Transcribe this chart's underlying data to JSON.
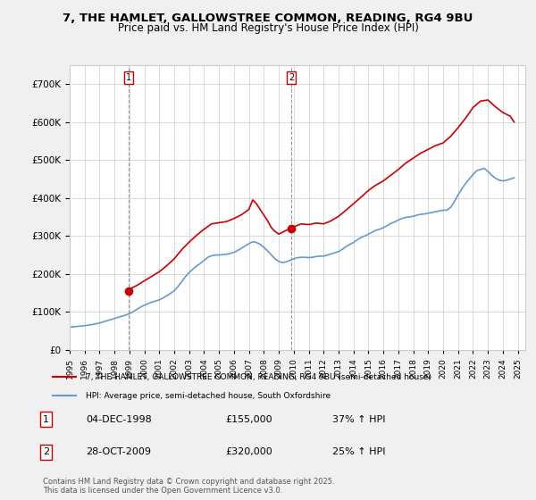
{
  "title_line1": "7, THE HAMLET, GALLOWSTREE COMMON, READING, RG4 9BU",
  "title_line2": "Price paid vs. HM Land Registry's House Price Index (HPI)",
  "ylim": [
    0,
    750000
  ],
  "yticks": [
    0,
    100000,
    200000,
    300000,
    400000,
    500000,
    600000,
    700000
  ],
  "ytick_labels": [
    "£0",
    "£100K",
    "£200K",
    "£300K",
    "£400K",
    "£500K",
    "£600K",
    "£700K"
  ],
  "x_start_year": 1995,
  "x_end_year": 2025,
  "marker1": {
    "label": "1",
    "date": "04-DEC-1998",
    "price": 155000,
    "hpi_change": "37% ↑ HPI",
    "x": 1998.92
  },
  "marker2": {
    "label": "2",
    "date": "28-OCT-2009",
    "price": 320000,
    "hpi_change": "25% ↑ HPI",
    "x": 2009.83
  },
  "legend_line1": "7, THE HAMLET, GALLOWSTREE COMMON, READING, RG4 9BU (semi-detached house)",
  "legend_line2": "HPI: Average price, semi-detached house, South Oxfordshire",
  "red_color": "#cc0000",
  "blue_color": "#6699cc",
  "copyright_text": "Contains HM Land Registry data © Crown copyright and database right 2025.\nThis data is licensed under the Open Government Licence v3.0.",
  "background_color": "#f0f0f0",
  "plot_background": "#ffffff",
  "hpi_data": {
    "years": [
      1995.0,
      1995.25,
      1995.5,
      1995.75,
      1996.0,
      1996.25,
      1996.5,
      1996.75,
      1997.0,
      1997.25,
      1997.5,
      1997.75,
      1998.0,
      1998.25,
      1998.5,
      1998.75,
      1999.0,
      1999.25,
      1999.5,
      1999.75,
      2000.0,
      2000.25,
      2000.5,
      2000.75,
      2001.0,
      2001.25,
      2001.5,
      2001.75,
      2002.0,
      2002.25,
      2002.5,
      2002.75,
      2003.0,
      2003.25,
      2003.5,
      2003.75,
      2004.0,
      2004.25,
      2004.5,
      2004.75,
      2005.0,
      2005.25,
      2005.5,
      2005.75,
      2006.0,
      2006.25,
      2006.5,
      2006.75,
      2007.0,
      2007.25,
      2007.5,
      2007.75,
      2008.0,
      2008.25,
      2008.5,
      2008.75,
      2009.0,
      2009.25,
      2009.5,
      2009.75,
      2010.0,
      2010.25,
      2010.5,
      2010.75,
      2011.0,
      2011.25,
      2011.5,
      2011.75,
      2012.0,
      2012.25,
      2012.5,
      2012.75,
      2013.0,
      2013.25,
      2013.5,
      2013.75,
      2014.0,
      2014.25,
      2014.5,
      2014.75,
      2015.0,
      2015.25,
      2015.5,
      2015.75,
      2016.0,
      2016.25,
      2016.5,
      2016.75,
      2017.0,
      2017.25,
      2017.5,
      2017.75,
      2018.0,
      2018.25,
      2018.5,
      2018.75,
      2019.0,
      2019.25,
      2019.5,
      2019.75,
      2020.0,
      2020.25,
      2020.5,
      2020.75,
      2021.0,
      2021.25,
      2021.5,
      2021.75,
      2022.0,
      2022.25,
      2022.5,
      2022.75,
      2023.0,
      2023.25,
      2023.5,
      2023.75,
      2024.0,
      2024.25,
      2024.5,
      2024.75
    ],
    "values": [
      60000,
      61000,
      62000,
      63000,
      64000,
      65500,
      67000,
      69000,
      71000,
      74000,
      77000,
      80000,
      83000,
      86000,
      89000,
      92000,
      96000,
      101000,
      107000,
      113000,
      118000,
      122000,
      126000,
      129000,
      132000,
      137000,
      143000,
      149000,
      156000,
      167000,
      180000,
      193000,
      204000,
      213000,
      221000,
      228000,
      236000,
      244000,
      248000,
      250000,
      250000,
      251000,
      252000,
      254000,
      257000,
      262000,
      268000,
      274000,
      280000,
      285000,
      283000,
      278000,
      270000,
      261000,
      250000,
      240000,
      233000,
      230000,
      232000,
      236000,
      240000,
      243000,
      244000,
      244000,
      243000,
      244000,
      246000,
      247000,
      247000,
      250000,
      253000,
      256000,
      259000,
      265000,
      272000,
      278000,
      283000,
      290000,
      296000,
      300000,
      305000,
      310000,
      315000,
      318000,
      322000,
      327000,
      333000,
      337000,
      342000,
      346000,
      349000,
      350000,
      352000,
      355000,
      357000,
      358000,
      360000,
      362000,
      364000,
      366000,
      368000,
      368000,
      375000,
      390000,
      408000,
      424000,
      438000,
      450000,
      462000,
      472000,
      475000,
      478000,
      470000,
      460000,
      452000,
      447000,
      445000,
      447000,
      450000,
      453000
    ]
  },
  "price_data": {
    "years": [
      1998.92,
      2009.83
    ],
    "values": [
      155000,
      320000
    ],
    "extended_years": [
      1998.92,
      1999.0,
      1999.5,
      2000.0,
      2000.5,
      2001.0,
      2001.5,
      2002.0,
      2002.5,
      2003.0,
      2003.5,
      2004.0,
      2004.5,
      2005.0,
      2005.5,
      2006.0,
      2006.5,
      2007.0,
      2007.25,
      2007.5,
      2007.75,
      2008.0,
      2008.25,
      2008.5,
      2008.75,
      2009.0,
      2009.25,
      2009.5,
      2009.75,
      2009.83,
      2010.0,
      2010.5,
      2011.0,
      2011.5,
      2012.0,
      2012.5,
      2013.0,
      2013.5,
      2014.0,
      2014.5,
      2015.0,
      2015.5,
      2016.0,
      2016.5,
      2017.0,
      2017.5,
      2018.0,
      2018.5,
      2019.0,
      2019.5,
      2020.0,
      2020.5,
      2021.0,
      2021.5,
      2022.0,
      2022.5,
      2023.0,
      2023.5,
      2024.0,
      2024.5,
      2024.75
    ],
    "extended_values": [
      155000,
      160000,
      170000,
      182000,
      194000,
      206000,
      222000,
      240000,
      264000,
      284000,
      302000,
      318000,
      332000,
      335000,
      338000,
      346000,
      356000,
      370000,
      395000,
      385000,
      370000,
      355000,
      340000,
      322000,
      312000,
      305000,
      310000,
      315000,
      318000,
      320000,
      324000,
      332000,
      330000,
      334000,
      332000,
      340000,
      352000,
      368000,
      385000,
      402000,
      420000,
      434000,
      445000,
      460000,
      475000,
      492000,
      505000,
      518000,
      528000,
      538000,
      545000,
      562000,
      585000,
      610000,
      638000,
      655000,
      658000,
      640000,
      625000,
      615000,
      600000
    ]
  }
}
